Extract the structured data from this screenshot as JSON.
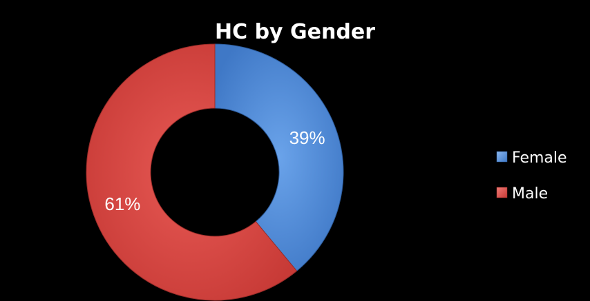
{
  "chart_data": {
    "type": "pie",
    "variant": "donut",
    "title": "HC by Gender",
    "categories": [
      "Female",
      "Male"
    ],
    "values": [
      39,
      61
    ],
    "data_labels": [
      "39%",
      "61%"
    ],
    "colors": [
      "#4a86d6",
      "#d64541"
    ],
    "legend_position": "right"
  }
}
